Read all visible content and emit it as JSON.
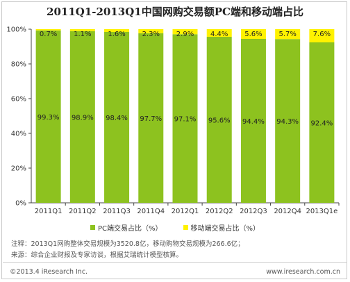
{
  "title": "2011Q1-2013Q1中国网购交易额PC端和移动端占比",
  "chart_data": {
    "type": "bar",
    "stacked": true,
    "categories": [
      "2011Q1",
      "2011Q2",
      "2011Q3",
      "2011Q4",
      "2012Q1",
      "2012Q2",
      "2012Q3",
      "2012Q4",
      "2013Q1e"
    ],
    "series": [
      {
        "name": "PC端交易占比（%）",
        "color": "#8dc21f",
        "values": [
          99.3,
          98.9,
          98.4,
          97.7,
          97.1,
          95.6,
          94.4,
          94.3,
          92.4
        ],
        "labels": [
          "99.3%",
          "98.9%",
          "98.4%",
          "97.7%",
          "97.1%",
          "95.6%",
          "94.4%",
          "94.3%",
          "92.4%"
        ]
      },
      {
        "name": "移动端交易占比（%）",
        "color": "#fff200",
        "values": [
          0.7,
          1.1,
          1.6,
          2.3,
          2.9,
          4.4,
          5.6,
          5.7,
          7.6
        ],
        "labels": [
          "0.7%",
          "1.1%",
          "1.6%",
          "2.3%",
          "2.9%",
          "4.4%",
          "5.6%",
          "5.7%",
          "7.6%"
        ]
      }
    ],
    "ylim": [
      0,
      100
    ],
    "yticks": [
      "0%",
      "20%",
      "40%",
      "60%",
      "80%",
      "100%"
    ],
    "grid": false,
    "legend": "bottom"
  },
  "notes": [
    "注释：2013Q1网购整体交易规模为3520.8亿，移动购物交易规模为266.6亿；",
    "来源：综合企业财报及专家访谈，根据艾瑞统计模型核算。"
  ],
  "footer": {
    "left": "©2013.4 iResearch Inc.",
    "right": "www.iresearch.com.cn"
  }
}
